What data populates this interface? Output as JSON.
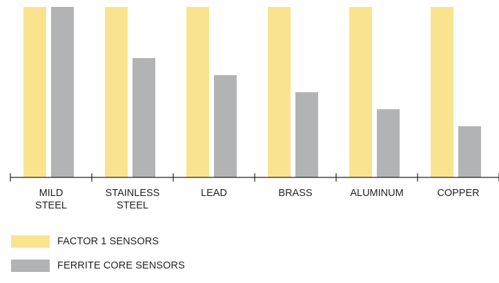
{
  "chart_data": {
    "type": "bar",
    "title": "",
    "xlabel": "",
    "ylabel": "",
    "categories": [
      [
        "MILD",
        "STEEL"
      ],
      [
        "STAINLESS",
        "STEEL"
      ],
      [
        "LEAD"
      ],
      [
        "BRASS"
      ],
      [
        "ALUMINUM"
      ],
      [
        "COPPER"
      ]
    ],
    "series": [
      {
        "name": "FACTOR 1 SENSORS",
        "color": "#fae38e",
        "values": [
          100,
          100,
          100,
          100,
          100,
          100
        ]
      },
      {
        "name": "FERRITE CORE SENSORS",
        "color": "#b2b3b5",
        "values": [
          100,
          70,
          60,
          50,
          40,
          30
        ]
      }
    ],
    "ylim": [
      0,
      100
    ],
    "grid": false,
    "legend_position": "bottom-left"
  }
}
